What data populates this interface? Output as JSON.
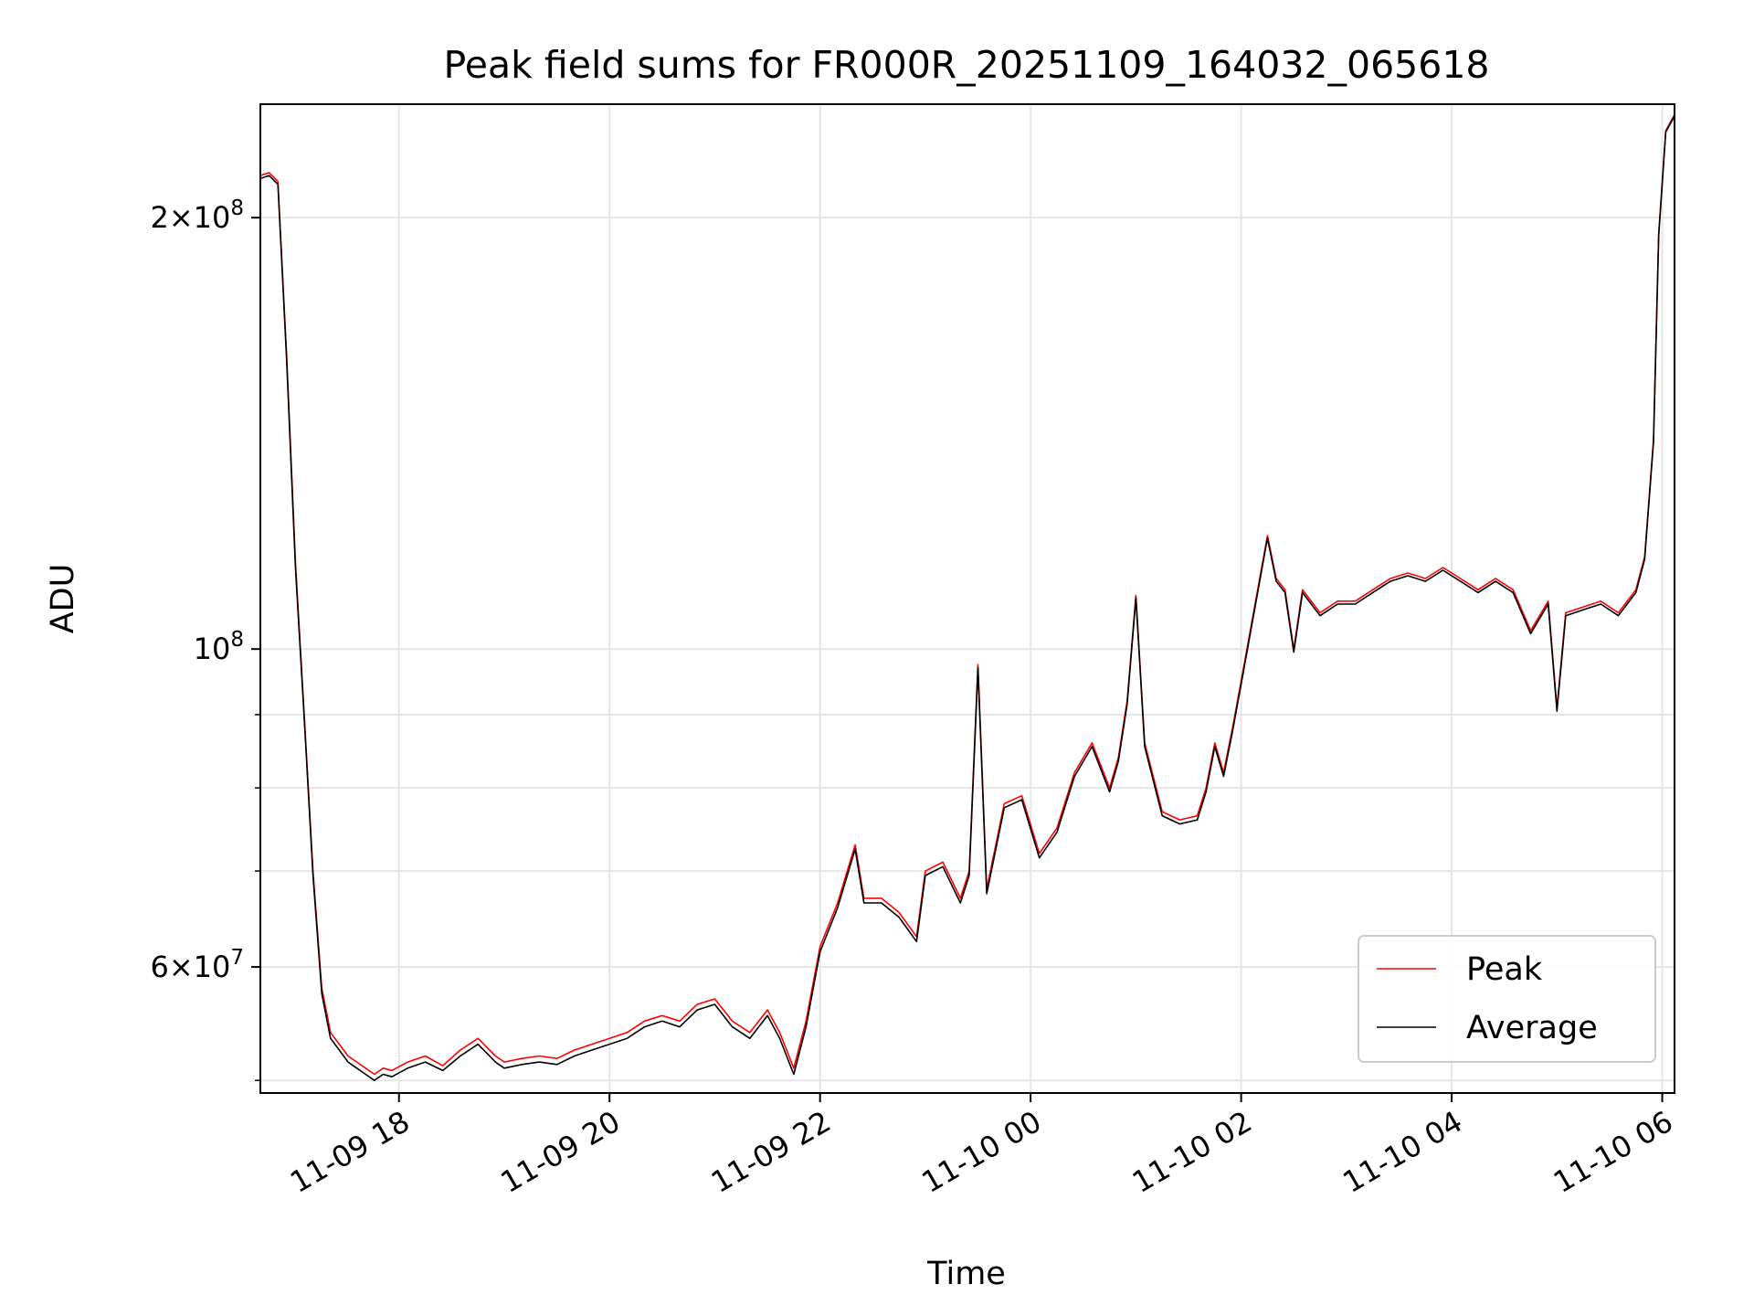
{
  "chart_data": {
    "type": "line",
    "title": "Peak field sums for FR000R_20251109_164032_065618",
    "xlabel": "Time",
    "ylabel": "ADU",
    "x_axis": {
      "type": "datetime",
      "range": [
        "2025-11-09 16:41",
        "2025-11-10 06:07"
      ],
      "ticks": [
        {
          "value": "2025-11-09 18:00",
          "label": "11-09 18"
        },
        {
          "value": "2025-11-09 20:00",
          "label": "11-09 20"
        },
        {
          "value": "2025-11-09 22:00",
          "label": "11-09 22"
        },
        {
          "value": "2025-11-10 00:00",
          "label": "11-10 00"
        },
        {
          "value": "2025-11-10 02:00",
          "label": "11-10 02"
        },
        {
          "value": "2025-11-10 04:00",
          "label": "11-10 04"
        },
        {
          "value": "2025-11-10 06:00",
          "label": "11-10 06"
        }
      ]
    },
    "y_axis": {
      "scale": "log",
      "range": [
        49000000,
        240000000
      ],
      "major_ticks": [
        {
          "value": 200000000,
          "label_mantissa": "2",
          "label_base": "10",
          "label_exp": "8",
          "label_prefix": "2×"
        },
        {
          "value": 100000000,
          "label_mantissa": "",
          "label_base": "10",
          "label_exp": "8",
          "label_prefix": ""
        },
        {
          "value": 60000000,
          "label_mantissa": "6",
          "label_base": "10",
          "label_exp": "7",
          "label_prefix": "6×"
        }
      ],
      "minor_ticks": [
        50000000,
        70000000,
        80000000,
        90000000
      ]
    },
    "grid": true,
    "legend": {
      "placement": "lower-right",
      "entries": [
        {
          "name": "Peak",
          "color": "#ff0000"
        },
        {
          "name": "Average",
          "color": "#000000"
        }
      ]
    },
    "series": [
      {
        "name": "Peak",
        "color": "#ff0000",
        "x": [
          "2025-11-09 16:41",
          "2025-11-09 16:46",
          "2025-11-09 16:51",
          "2025-11-09 16:56",
          "2025-11-09 17:01",
          "2025-11-09 17:06",
          "2025-11-09 17:11",
          "2025-11-09 17:16",
          "2025-11-09 17:21",
          "2025-11-09 17:26",
          "2025-11-09 17:31",
          "2025-11-09 17:36",
          "2025-11-09 17:41",
          "2025-11-09 17:46",
          "2025-11-09 17:51",
          "2025-11-09 17:56",
          "2025-11-09 18:05",
          "2025-11-09 18:15",
          "2025-11-09 18:25",
          "2025-11-09 18:35",
          "2025-11-09 18:45",
          "2025-11-09 18:55",
          "2025-11-09 19:00",
          "2025-11-09 19:10",
          "2025-11-09 19:20",
          "2025-11-09 19:30",
          "2025-11-09 19:40",
          "2025-11-09 19:50",
          "2025-11-09 20:00",
          "2025-11-09 20:10",
          "2025-11-09 20:20",
          "2025-11-09 20:30",
          "2025-11-09 20:40",
          "2025-11-09 20:50",
          "2025-11-09 21:00",
          "2025-11-09 21:10",
          "2025-11-09 21:20",
          "2025-11-09 21:30",
          "2025-11-09 21:37",
          "2025-11-09 21:45",
          "2025-11-09 21:52",
          "2025-11-09 22:00",
          "2025-11-09 22:10",
          "2025-11-09 22:20",
          "2025-11-09 22:25",
          "2025-11-09 22:35",
          "2025-11-09 22:45",
          "2025-11-09 22:55",
          "2025-11-09 23:00",
          "2025-11-09 23:10",
          "2025-11-09 23:20",
          "2025-11-09 23:25",
          "2025-11-09 23:30",
          "2025-11-09 23:35",
          "2025-11-09 23:45",
          "2025-11-09 23:55",
          "2025-11-10 00:05",
          "2025-11-10 00:15",
          "2025-11-10 00:25",
          "2025-11-10 00:35",
          "2025-11-10 00:45",
          "2025-11-10 00:50",
          "2025-11-10 00:55",
          "2025-11-10 01:00",
          "2025-11-10 01:05",
          "2025-11-10 01:15",
          "2025-11-10 01:25",
          "2025-11-10 01:35",
          "2025-11-10 01:40",
          "2025-11-10 01:45",
          "2025-11-10 01:50",
          "2025-11-10 01:55",
          "2025-11-10 02:00",
          "2025-11-10 02:10",
          "2025-11-10 02:15",
          "2025-11-10 02:20",
          "2025-11-10 02:25",
          "2025-11-10 02:30",
          "2025-11-10 02:35",
          "2025-11-10 02:45",
          "2025-11-10 02:55",
          "2025-11-10 03:05",
          "2025-11-10 03:15",
          "2025-11-10 03:25",
          "2025-11-10 03:35",
          "2025-11-10 03:45",
          "2025-11-10 03:55",
          "2025-11-10 04:05",
          "2025-11-10 04:15",
          "2025-11-10 04:25",
          "2025-11-10 04:35",
          "2025-11-10 04:45",
          "2025-11-10 04:55",
          "2025-11-10 05:00",
          "2025-11-10 05:05",
          "2025-11-10 05:15",
          "2025-11-10 05:25",
          "2025-11-10 05:35",
          "2025-11-10 05:45",
          "2025-11-10 05:50",
          "2025-11-10 05:55",
          "2025-11-10 05:58",
          "2025-11-10 06:02",
          "2025-11-10 06:07"
        ],
        "values": [
          214000000,
          215000000,
          212000000,
          160000000,
          115000000,
          90000000,
          70000000,
          58000000,
          54000000,
          53000000,
          52000000,
          51500000,
          51000000,
          50500000,
          51000000,
          50800000,
          51500000,
          52000000,
          51200000,
          52500000,
          53500000,
          52000000,
          51500000,
          51800000,
          52000000,
          51800000,
          52500000,
          53000000,
          53500000,
          54000000,
          55000000,
          55500000,
          55000000,
          56500000,
          57000000,
          55000000,
          54000000,
          56000000,
          54000000,
          51000000,
          55000000,
          62000000,
          66500000,
          73000000,
          67000000,
          67000000,
          65500000,
          63000000,
          70000000,
          71000000,
          67000000,
          70000000,
          97500000,
          68000000,
          78000000,
          79000000,
          72000000,
          75000000,
          82000000,
          86000000,
          80000000,
          84000000,
          92000000,
          109000000,
          86000000,
          77000000,
          76000000,
          76500000,
          80000000,
          86000000,
          82000000,
          88000000,
          95000000,
          111000000,
          120000000,
          112000000,
          110000000,
          100000000,
          110000000,
          106000000,
          108000000,
          108000000,
          110000000,
          112000000,
          113000000,
          112000000,
          114000000,
          112000000,
          110000000,
          112000000,
          110000000,
          103000000,
          108000000,
          91000000,
          106000000,
          107000000,
          108000000,
          106000000,
          110000000,
          116000000,
          140000000,
          195000000,
          230000000,
          236000000
        ]
      },
      {
        "name": "Average",
        "color": "#000000",
        "x": [
          "2025-11-09 16:41",
          "2025-11-09 16:46",
          "2025-11-09 16:51",
          "2025-11-09 16:56",
          "2025-11-09 17:01",
          "2025-11-09 17:06",
          "2025-11-09 17:11",
          "2025-11-09 17:16",
          "2025-11-09 17:21",
          "2025-11-09 17:26",
          "2025-11-09 17:31",
          "2025-11-09 17:36",
          "2025-11-09 17:41",
          "2025-11-09 17:46",
          "2025-11-09 17:51",
          "2025-11-09 17:56",
          "2025-11-09 18:05",
          "2025-11-09 18:15",
          "2025-11-09 18:25",
          "2025-11-09 18:35",
          "2025-11-09 18:45",
          "2025-11-09 18:55",
          "2025-11-09 19:00",
          "2025-11-09 19:10",
          "2025-11-09 19:20",
          "2025-11-09 19:30",
          "2025-11-09 19:40",
          "2025-11-09 19:50",
          "2025-11-09 20:00",
          "2025-11-09 20:10",
          "2025-11-09 20:20",
          "2025-11-09 20:30",
          "2025-11-09 20:40",
          "2025-11-09 20:50",
          "2025-11-09 21:00",
          "2025-11-09 21:10",
          "2025-11-09 21:20",
          "2025-11-09 21:30",
          "2025-11-09 21:37",
          "2025-11-09 21:45",
          "2025-11-09 21:52",
          "2025-11-09 22:00",
          "2025-11-09 22:10",
          "2025-11-09 22:20",
          "2025-11-09 22:25",
          "2025-11-09 22:35",
          "2025-11-09 22:45",
          "2025-11-09 22:55",
          "2025-11-09 23:00",
          "2025-11-09 23:10",
          "2025-11-09 23:20",
          "2025-11-09 23:25",
          "2025-11-09 23:30",
          "2025-11-09 23:35",
          "2025-11-09 23:45",
          "2025-11-09 23:55",
          "2025-11-10 00:05",
          "2025-11-10 00:15",
          "2025-11-10 00:25",
          "2025-11-10 00:35",
          "2025-11-10 00:45",
          "2025-11-10 00:50",
          "2025-11-10 00:55",
          "2025-11-10 01:00",
          "2025-11-10 01:05",
          "2025-11-10 01:15",
          "2025-11-10 01:25",
          "2025-11-10 01:35",
          "2025-11-10 01:40",
          "2025-11-10 01:45",
          "2025-11-10 01:50",
          "2025-11-10 01:55",
          "2025-11-10 02:00",
          "2025-11-10 02:10",
          "2025-11-10 02:15",
          "2025-11-10 02:20",
          "2025-11-10 02:25",
          "2025-11-10 02:30",
          "2025-11-10 02:35",
          "2025-11-10 02:45",
          "2025-11-10 02:55",
          "2025-11-10 03:05",
          "2025-11-10 03:15",
          "2025-11-10 03:25",
          "2025-11-10 03:35",
          "2025-11-10 03:45",
          "2025-11-10 03:55",
          "2025-11-10 04:05",
          "2025-11-10 04:15",
          "2025-11-10 04:25",
          "2025-11-10 04:35",
          "2025-11-10 04:45",
          "2025-11-10 04:55",
          "2025-11-10 05:00",
          "2025-11-10 05:05",
          "2025-11-10 05:15",
          "2025-11-10 05:25",
          "2025-11-10 05:35",
          "2025-11-10 05:45",
          "2025-11-10 05:50",
          "2025-11-10 05:55",
          "2025-11-10 05:58",
          "2025-11-10 06:02",
          "2025-11-10 06:07"
        ],
        "values": [
          213000000,
          214000000,
          211000000,
          159000000,
          114000000,
          89500000,
          69500000,
          57500000,
          53500000,
          52500000,
          51500000,
          51000000,
          50500000,
          50000000,
          50500000,
          50300000,
          51000000,
          51500000,
          50800000,
          52000000,
          53000000,
          51500000,
          51000000,
          51300000,
          51500000,
          51300000,
          52000000,
          52500000,
          53000000,
          53500000,
          54500000,
          55000000,
          54500000,
          56000000,
          56500000,
          54500000,
          53500000,
          55500000,
          53500000,
          50500000,
          54500000,
          61500000,
          66000000,
          72500000,
          66500000,
          66500000,
          65000000,
          62500000,
          69500000,
          70500000,
          66500000,
          69500000,
          97000000,
          67500000,
          77500000,
          78500000,
          71500000,
          74500000,
          81500000,
          85500000,
          79500000,
          83500000,
          91500000,
          108500000,
          85500000,
          76500000,
          75500000,
          76000000,
          79500000,
          85500000,
          81500000,
          87500000,
          94500000,
          110500000,
          119500000,
          111500000,
          109500000,
          99500000,
          109500000,
          105500000,
          107500000,
          107500000,
          109500000,
          111500000,
          112500000,
          111500000,
          113500000,
          111500000,
          109500000,
          111500000,
          109500000,
          102500000,
          107500000,
          90500000,
          105500000,
          106500000,
          107500000,
          105500000,
          109500000,
          115500000,
          139500000,
          194500000,
          229500000,
          235500000
        ]
      }
    ]
  }
}
